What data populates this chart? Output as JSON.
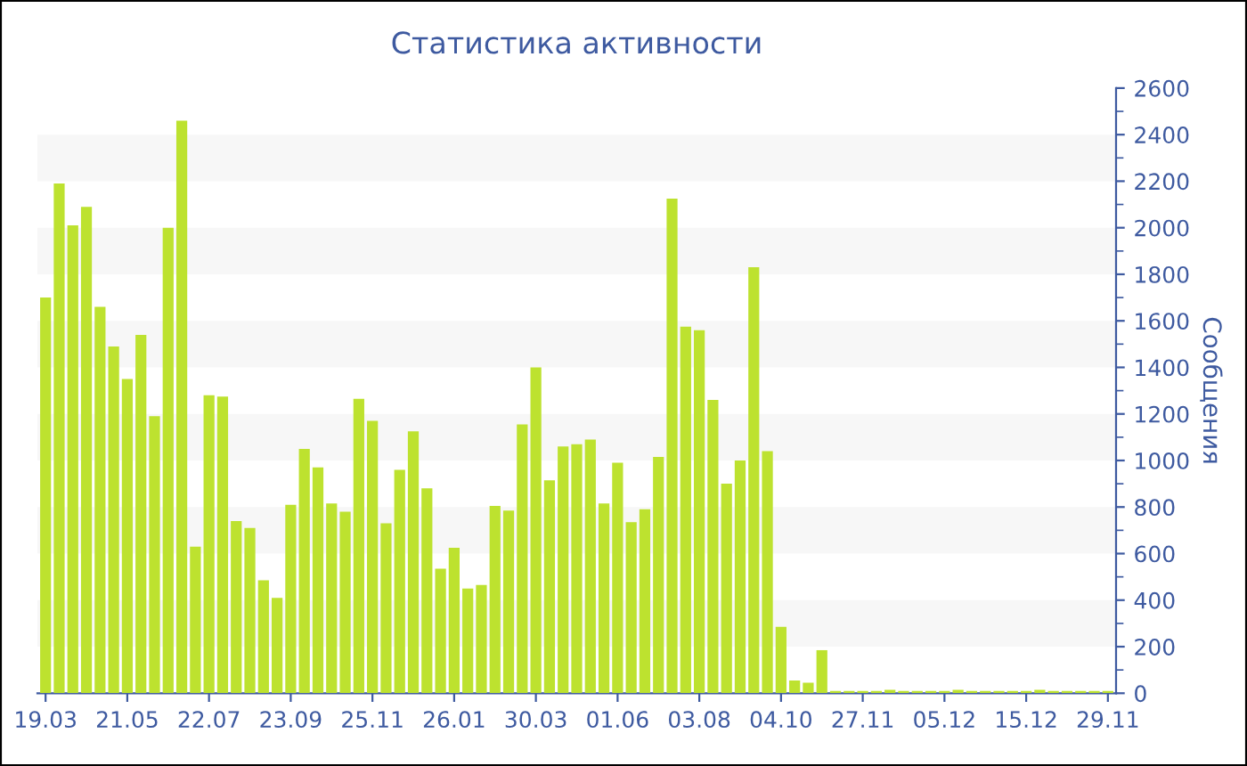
{
  "chart_data": {
    "type": "bar",
    "title": "Статистика активности",
    "ylabel": "Сообщения",
    "categories": [
      "19.03",
      null,
      null,
      null,
      null,
      null,
      "21.05",
      null,
      null,
      null,
      null,
      null,
      "22.07",
      null,
      null,
      null,
      null,
      null,
      "23.09",
      null,
      null,
      null,
      null,
      null,
      "25.11",
      null,
      null,
      null,
      null,
      null,
      "26.01",
      null,
      null,
      null,
      null,
      null,
      "30.03",
      null,
      null,
      null,
      null,
      null,
      "01.06",
      null,
      null,
      null,
      null,
      null,
      "03.08",
      null,
      null,
      null,
      null,
      null,
      "04.10",
      null,
      null,
      null,
      null,
      null,
      "27.11",
      null,
      null,
      null,
      null,
      null,
      "05.12",
      null,
      null,
      null,
      null,
      null,
      "15.12",
      null,
      null,
      null,
      null,
      null,
      "29.11"
    ],
    "values": [
      1700,
      2190,
      2010,
      2090,
      1660,
      1490,
      1350,
      1540,
      1190,
      2000,
      2460,
      630,
      1280,
      1275,
      740,
      710,
      485,
      410,
      810,
      1050,
      970,
      815,
      780,
      1265,
      1170,
      730,
      960,
      1125,
      880,
      535,
      625,
      450,
      465,
      805,
      785,
      1155,
      1400,
      915,
      1060,
      1070,
      1090,
      815,
      990,
      735,
      790,
      1015,
      2125,
      1575,
      1560,
      1260,
      900,
      1000,
      1830,
      1040,
      285,
      55,
      45,
      185,
      10,
      10,
      10,
      10,
      15,
      10,
      10,
      10,
      10,
      15,
      10,
      10,
      10,
      10,
      10,
      15,
      10,
      10,
      10,
      10,
      10
    ],
    "color": "#bde22f",
    "ylim": [
      0,
      2600
    ],
    "yticks": [
      0,
      200,
      400,
      600,
      800,
      1000,
      1200,
      1400,
      1600,
      1800,
      2000,
      2200,
      2400,
      2600
    ],
    "bands": [
      {
        "axis": "y",
        "from": 200,
        "to": 400,
        "color": "#f7f7f7"
      },
      {
        "axis": "y",
        "from": 600,
        "to": 800,
        "color": "#f7f7f7"
      },
      {
        "axis": "y",
        "from": 1000,
        "to": 1200,
        "color": "#f7f7f7"
      },
      {
        "axis": "y",
        "from": 1400,
        "to": 1600,
        "color": "#f7f7f7"
      },
      {
        "axis": "y",
        "from": 1800,
        "to": 2000,
        "color": "#f7f7f7"
      },
      {
        "axis": "y",
        "from": 2200,
        "to": 2400,
        "color": "#f7f7f7"
      }
    ],
    "grid": false,
    "legend": false
  }
}
